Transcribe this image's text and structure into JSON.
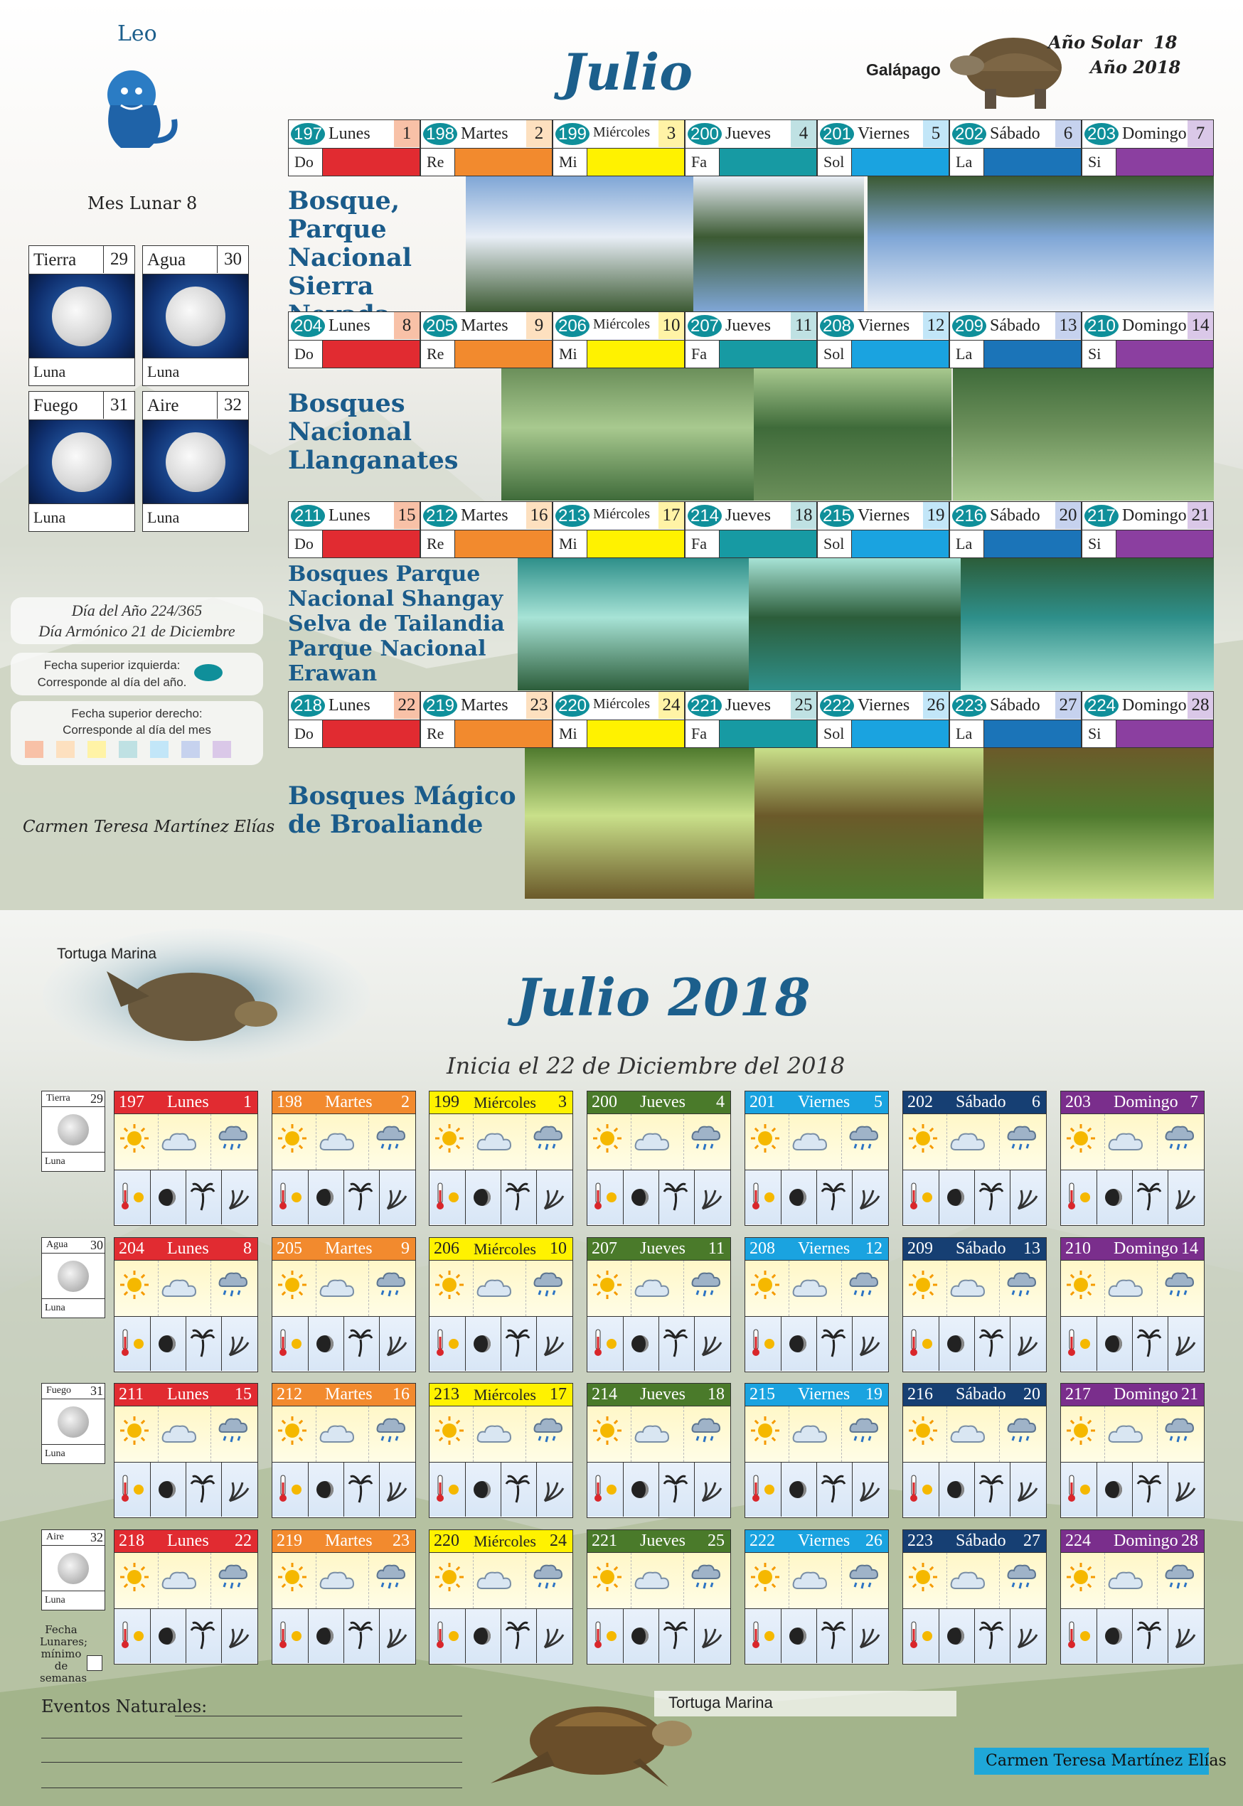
{
  "top": {
    "sign": "Leo",
    "title": "Julio",
    "galapago": "Galápago",
    "solar": "Año Solar",
    "solar_num": "18",
    "year": "Año 2018",
    "mes_lunar": "Mes Lunar 8",
    "moonboxes": [
      {
        "name": "Tierra",
        "num": "29",
        "foot": "Luna"
      },
      {
        "name": "Agua",
        "num": "30",
        "foot": "Luna"
      },
      {
        "name": "Fuego",
        "num": "31",
        "foot": "Luna"
      },
      {
        "name": "Aire",
        "num": "32",
        "foot": "Luna"
      }
    ],
    "info1_line1": "Día del Año 224/365",
    "info1_line2": "Día Armónico 21 de Diciembre",
    "info2_line1": "Fecha superior izquierda:",
    "info2_line2": "Corresponde al día del año.",
    "info3_line1": "Fecha superior derecho:",
    "info3_line2": "Corresponde al día del mes",
    "author": "Carmen Teresa Martínez Elías",
    "notes": [
      "Do",
      "Re",
      "Mi",
      "Fa",
      "Sol",
      "La",
      "Si"
    ],
    "note_colors": [
      "#e12b31",
      "#f28a2e",
      "#fff200",
      "#179aa3",
      "#1aa3e0",
      "#1b74b8",
      "#8b3fa0"
    ],
    "head_colors": [
      "#f8c1a7",
      "#fde0bf",
      "#fff3a6",
      "#bfe1e3",
      "#c2e6f8",
      "#c6d2ee",
      "#dac8e8"
    ],
    "weeks": [
      {
        "label": [
          "Bosque,",
          "Parque",
          "Nacional",
          "Sierra Nevada"
        ],
        "days": [
          {
            "doy": "197",
            "name": "Lunes",
            "num": "1"
          },
          {
            "doy": "198",
            "name": "Martes",
            "num": "2"
          },
          {
            "doy": "199",
            "name": "Miércoles",
            "num": "3"
          },
          {
            "doy": "200",
            "name": "Jueves",
            "num": "4"
          },
          {
            "doy": "201",
            "name": "Viernes",
            "num": "5"
          },
          {
            "doy": "202",
            "name": "Sábado",
            "num": "6"
          },
          {
            "doy": "203",
            "name": "Domingo",
            "num": "7"
          }
        ]
      },
      {
        "label": [
          "Bosques",
          "Nacional",
          "Llanganates"
        ],
        "days": [
          {
            "doy": "204",
            "name": "Lunes",
            "num": "8"
          },
          {
            "doy": "205",
            "name": "Martes",
            "num": "9"
          },
          {
            "doy": "206",
            "name": "Miércoles",
            "num": "10"
          },
          {
            "doy": "207",
            "name": "Jueves",
            "num": "11"
          },
          {
            "doy": "208",
            "name": "Viernes",
            "num": "12"
          },
          {
            "doy": "209",
            "name": "Sábado",
            "num": "13"
          },
          {
            "doy": "210",
            "name": "Domingo",
            "num": "14"
          }
        ]
      },
      {
        "label": [
          "Bosques Parque",
          "Nacional Shangay",
          "Selva de Tailandia",
          "Parque Nacional",
          "Erawan"
        ],
        "days": [
          {
            "doy": "211",
            "name": "Lunes",
            "num": "15"
          },
          {
            "doy": "212",
            "name": "Martes",
            "num": "16"
          },
          {
            "doy": "213",
            "name": "Miércoles",
            "num": "17"
          },
          {
            "doy": "214",
            "name": "Jueves",
            "num": "18"
          },
          {
            "doy": "215",
            "name": "Viernes",
            "num": "19"
          },
          {
            "doy": "216",
            "name": "Sábado",
            "num": "20"
          },
          {
            "doy": "217",
            "name": "Domingo",
            "num": "21"
          }
        ]
      },
      {
        "label": [
          "Bosques Mágico",
          "de Broaliande"
        ],
        "days": [
          {
            "doy": "218",
            "name": "Lunes",
            "num": "22"
          },
          {
            "doy": "219",
            "name": "Martes",
            "num": "23"
          },
          {
            "doy": "220",
            "name": "Miércoles",
            "num": "24"
          },
          {
            "doy": "221",
            "name": "Jueves",
            "num": "25"
          },
          {
            "doy": "222",
            "name": "Viernes",
            "num": "26"
          },
          {
            "doy": "223",
            "name": "Sábado",
            "num": "27"
          },
          {
            "doy": "224",
            "name": "Domingo",
            "num": "28"
          }
        ]
      }
    ]
  },
  "bottom": {
    "tortuga_top": "Tortuga Marina",
    "title": "Julio 2018",
    "subtitle": "Inicia el 22 de Diciembre del 2018",
    "head_colors": [
      "#e12b31",
      "#f28a2e",
      "#fff200",
      "#4a7a2a",
      "#1aa3e0",
      "#163f73",
      "#7a2e8c"
    ],
    "head_text_colors": [
      "#ffffff",
      "#ffffff",
      "#222222",
      "#ffffff",
      "#ffffff",
      "#ffffff",
      "#ffffff"
    ],
    "moons": [
      {
        "name": "Tierra",
        "num": "29",
        "foot": "Luna"
      },
      {
        "name": "Agua",
        "num": "30",
        "foot": "Luna"
      },
      {
        "name": "Fuego",
        "num": "31",
        "foot": "Luna"
      },
      {
        "name": "Aire",
        "num": "32",
        "foot": "Luna"
      }
    ],
    "fecha_note": [
      "Fecha",
      "Lunares;",
      "mínimo de",
      "semanas"
    ],
    "weeks": [
      [
        {
          "doy": "197",
          "name": "Lunes",
          "num": "1"
        },
        {
          "doy": "198",
          "name": "Martes",
          "num": "2"
        },
        {
          "doy": "199",
          "name": "Miércoles",
          "num": "3"
        },
        {
          "doy": "200",
          "name": "Jueves",
          "num": "4"
        },
        {
          "doy": "201",
          "name": "Viernes",
          "num": "5"
        },
        {
          "doy": "202",
          "name": "Sábado",
          "num": "6"
        },
        {
          "doy": "203",
          "name": "Domingo",
          "num": "7"
        }
      ],
      [
        {
          "doy": "204",
          "name": "Lunes",
          "num": "8"
        },
        {
          "doy": "205",
          "name": "Martes",
          "num": "9"
        },
        {
          "doy": "206",
          "name": "Miércoles",
          "num": "10"
        },
        {
          "doy": "207",
          "name": "Jueves",
          "num": "11"
        },
        {
          "doy": "208",
          "name": "Viernes",
          "num": "12"
        },
        {
          "doy": "209",
          "name": "Sábado",
          "num": "13"
        },
        {
          "doy": "210",
          "name": "Domingo",
          "num": "14"
        }
      ],
      [
        {
          "doy": "211",
          "name": "Lunes",
          "num": "15"
        },
        {
          "doy": "212",
          "name": "Martes",
          "num": "16"
        },
        {
          "doy": "213",
          "name": "Miércoles",
          "num": "17"
        },
        {
          "doy": "214",
          "name": "Jueves",
          "num": "18"
        },
        {
          "doy": "215",
          "name": "Viernes",
          "num": "19"
        },
        {
          "doy": "216",
          "name": "Sábado",
          "num": "20"
        },
        {
          "doy": "217",
          "name": "Domingo",
          "num": "21"
        }
      ],
      [
        {
          "doy": "218",
          "name": "Lunes",
          "num": "22"
        },
        {
          "doy": "219",
          "name": "Martes",
          "num": "23"
        },
        {
          "doy": "220",
          "name": "Miércoles",
          "num": "24"
        },
        {
          "doy": "221",
          "name": "Jueves",
          "num": "25"
        },
        {
          "doy": "222",
          "name": "Viernes",
          "num": "26"
        },
        {
          "doy": "223",
          "name": "Sábado",
          "num": "27"
        },
        {
          "doy": "224",
          "name": "Domingo",
          "num": "28"
        }
      ]
    ],
    "eventos": "Eventos Naturales:",
    "tortuga_bottom": "Tortuga Marina",
    "author": "Carmen Teresa Martínez Elías"
  },
  "icons": [
    "sun-icon",
    "cloud-icon",
    "rain-cloud-icon",
    "thermometer-icon",
    "moon-phase-icon",
    "palm-tree-icon",
    "wind-icon"
  ]
}
